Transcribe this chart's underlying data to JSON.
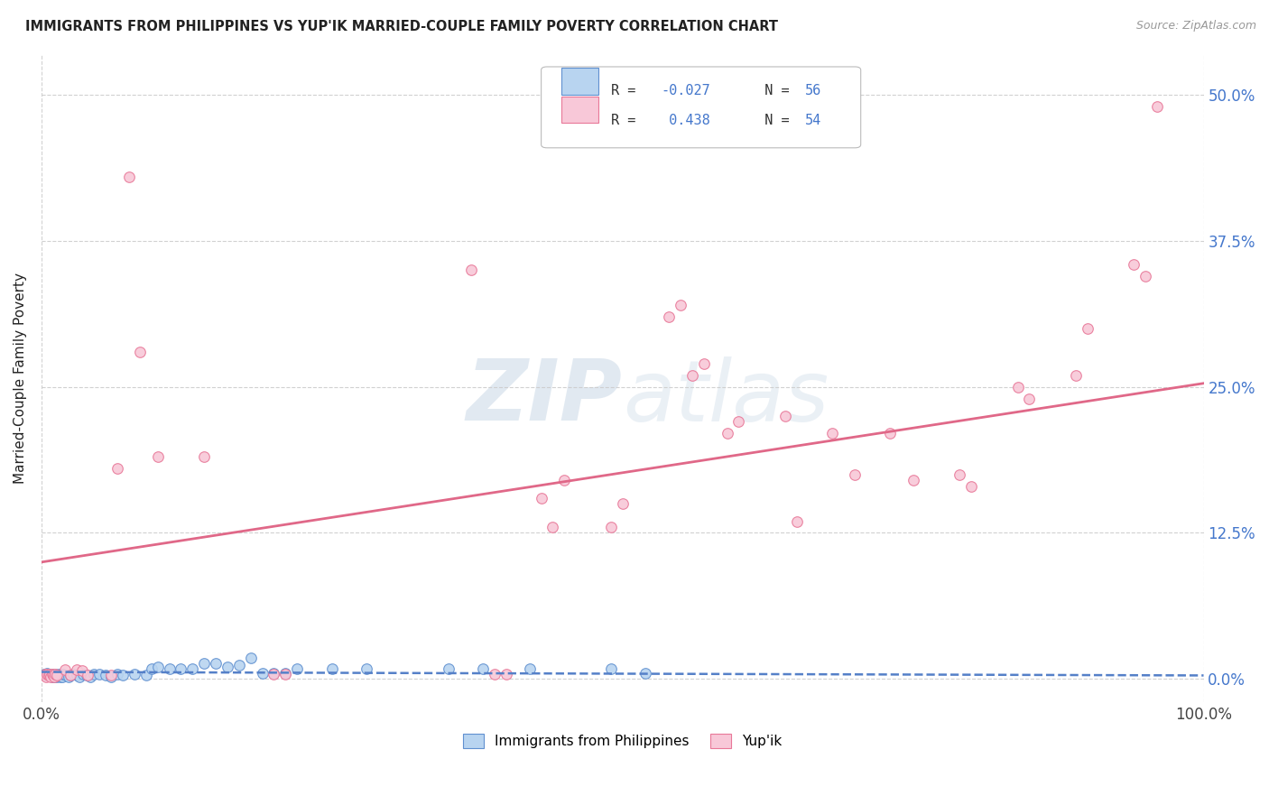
{
  "title": "IMMIGRANTS FROM PHILIPPINES VS YUP'IK MARRIED-COUPLE FAMILY POVERTY CORRELATION CHART",
  "source": "Source: ZipAtlas.com",
  "ylabel": "Married-Couple Family Poverty",
  "xlim": [
    0,
    1.0
  ],
  "ylim": [
    -0.02,
    0.535
  ],
  "yticks": [
    0.0,
    0.125,
    0.25,
    0.375,
    0.5
  ],
  "ytick_labels": [
    "0.0%",
    "12.5%",
    "25.0%",
    "37.5%",
    "50.0%"
  ],
  "xticks": [
    0.0,
    1.0
  ],
  "xtick_labels": [
    "0.0%",
    "100.0%"
  ],
  "legend_label1": "Immigrants from Philippines",
  "legend_label2": "Yup'ik",
  "blue_color": "#b8d4f0",
  "pink_color": "#f8c8d8",
  "blue_edge_color": "#6090d0",
  "pink_edge_color": "#e87898",
  "blue_line_color": "#5580c8",
  "pink_line_color": "#e06888",
  "blue_scatter": [
    [
      0.002,
      0.004
    ],
    [
      0.003,
      0.004
    ],
    [
      0.004,
      0.003
    ],
    [
      0.005,
      0.005
    ],
    [
      0.006,
      0.004
    ],
    [
      0.007,
      0.003
    ],
    [
      0.008,
      0.004
    ],
    [
      0.009,
      0.002
    ],
    [
      0.01,
      0.004
    ],
    [
      0.011,
      0.002
    ],
    [
      0.012,
      0.004
    ],
    [
      0.013,
      0.002
    ],
    [
      0.014,
      0.003
    ],
    [
      0.015,
      0.004
    ],
    [
      0.016,
      0.002
    ],
    [
      0.017,
      0.004
    ],
    [
      0.018,
      0.002
    ],
    [
      0.019,
      0.004
    ],
    [
      0.021,
      0.003
    ],
    [
      0.023,
      0.002
    ],
    [
      0.025,
      0.003
    ],
    [
      0.027,
      0.004
    ],
    [
      0.03,
      0.003
    ],
    [
      0.033,
      0.002
    ],
    [
      0.036,
      0.004
    ],
    [
      0.039,
      0.003
    ],
    [
      0.042,
      0.002
    ],
    [
      0.045,
      0.004
    ],
    [
      0.05,
      0.004
    ],
    [
      0.055,
      0.003
    ],
    [
      0.06,
      0.002
    ],
    [
      0.065,
      0.004
    ],
    [
      0.07,
      0.003
    ],
    [
      0.08,
      0.004
    ],
    [
      0.09,
      0.003
    ],
    [
      0.095,
      0.009
    ],
    [
      0.1,
      0.01
    ],
    [
      0.11,
      0.009
    ],
    [
      0.12,
      0.009
    ],
    [
      0.13,
      0.009
    ],
    [
      0.14,
      0.013
    ],
    [
      0.15,
      0.013
    ],
    [
      0.16,
      0.01
    ],
    [
      0.17,
      0.012
    ],
    [
      0.18,
      0.018
    ],
    [
      0.19,
      0.005
    ],
    [
      0.2,
      0.005
    ],
    [
      0.21,
      0.005
    ],
    [
      0.22,
      0.009
    ],
    [
      0.25,
      0.009
    ],
    [
      0.28,
      0.009
    ],
    [
      0.35,
      0.009
    ],
    [
      0.38,
      0.009
    ],
    [
      0.42,
      0.009
    ],
    [
      0.49,
      0.009
    ],
    [
      0.52,
      0.005
    ]
  ],
  "pink_scatter": [
    [
      0.003,
      0.004
    ],
    [
      0.004,
      0.002
    ],
    [
      0.005,
      0.004
    ],
    [
      0.006,
      0.003
    ],
    [
      0.007,
      0.004
    ],
    [
      0.008,
      0.002
    ],
    [
      0.009,
      0.004
    ],
    [
      0.01,
      0.003
    ],
    [
      0.011,
      0.002
    ],
    [
      0.012,
      0.004
    ],
    [
      0.013,
      0.003
    ],
    [
      0.02,
      0.008
    ],
    [
      0.025,
      0.003
    ],
    [
      0.03,
      0.008
    ],
    [
      0.035,
      0.007
    ],
    [
      0.04,
      0.003
    ],
    [
      0.06,
      0.003
    ],
    [
      0.065,
      0.18
    ],
    [
      0.075,
      0.43
    ],
    [
      0.085,
      0.28
    ],
    [
      0.1,
      0.19
    ],
    [
      0.14,
      0.19
    ],
    [
      0.2,
      0.004
    ],
    [
      0.21,
      0.004
    ],
    [
      0.37,
      0.35
    ],
    [
      0.39,
      0.004
    ],
    [
      0.4,
      0.004
    ],
    [
      0.43,
      0.155
    ],
    [
      0.44,
      0.13
    ],
    [
      0.45,
      0.17
    ],
    [
      0.49,
      0.13
    ],
    [
      0.5,
      0.15
    ],
    [
      0.54,
      0.31
    ],
    [
      0.55,
      0.32
    ],
    [
      0.56,
      0.26
    ],
    [
      0.57,
      0.27
    ],
    [
      0.59,
      0.21
    ],
    [
      0.6,
      0.22
    ],
    [
      0.64,
      0.225
    ],
    [
      0.65,
      0.135
    ],
    [
      0.68,
      0.21
    ],
    [
      0.7,
      0.175
    ],
    [
      0.73,
      0.21
    ],
    [
      0.75,
      0.17
    ],
    [
      0.79,
      0.175
    ],
    [
      0.8,
      0.165
    ],
    [
      0.84,
      0.25
    ],
    [
      0.85,
      0.24
    ],
    [
      0.89,
      0.26
    ],
    [
      0.9,
      0.3
    ],
    [
      0.94,
      0.355
    ],
    [
      0.95,
      0.345
    ],
    [
      0.96,
      0.49
    ]
  ],
  "blue_line_start": 0.006,
  "blue_line_end": 0.003,
  "pink_line_start": 0.1,
  "pink_line_end": 0.253,
  "watermark_zip": "ZIP",
  "watermark_atlas": "atlas",
  "watermark_color_zip": "#c8d8e8",
  "watermark_color_atlas": "#c8d8e8",
  "background_color": "#ffffff",
  "grid_color": "#cccccc",
  "title_color": "#222222",
  "source_color": "#999999",
  "ylabel_color": "#222222",
  "ytick_color": "#4477cc",
  "xtick_color": "#444444"
}
